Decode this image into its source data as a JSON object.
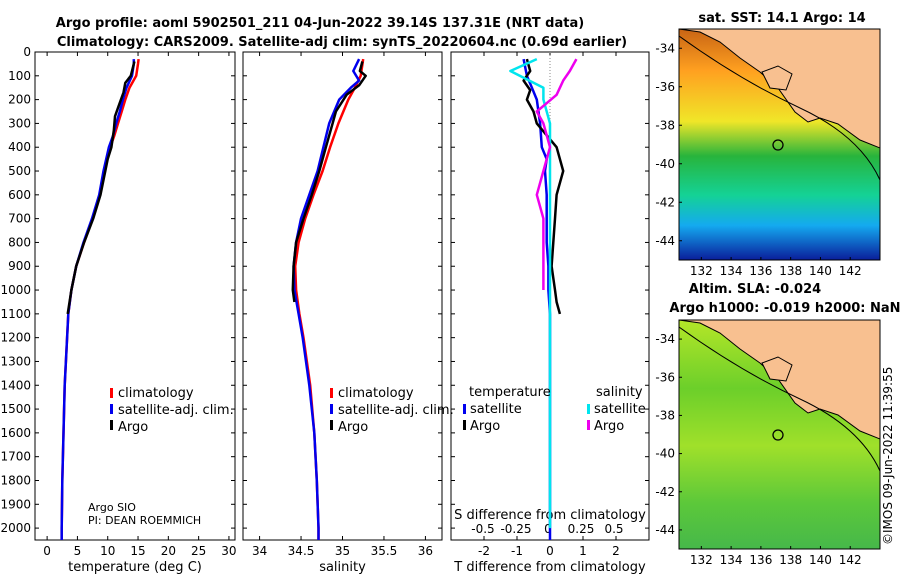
{
  "title": {
    "line1": "Argo profile: aoml 5902501_211 04-Jun-2022 39.14S 137.31E (NRT data)",
    "line2": "Climatology: CARS2009. Satellite-adj clim: synTS_20220604.nc (0.69d earlier)"
  },
  "colors": {
    "climatology": "#ff0000",
    "satellite": "#0000ee",
    "argo": "#000000",
    "sat_salinity": "#00e5ee",
    "argo_salinity": "#ee00ee"
  },
  "credits": {
    "line1": "Argo SIO",
    "line2": "PI: DEAN ROEMMICH"
  },
  "timestamp": "©IMOS 09-Jun-2022 11:39:55",
  "legend": {
    "climatology": "climatology",
    "satellite": "satellite-adj. clim.",
    "argo": "Argo",
    "temperature": "temperature",
    "salinity": "salinity",
    "sat_short": "satellite"
  },
  "chart_data": [
    {
      "type": "line",
      "id": "temperature",
      "xlabel": "temperature (deg C)",
      "ylabel": "",
      "xlim": [
        -2,
        31
      ],
      "ylim": [
        0,
        2050
      ],
      "xticks": [
        0,
        5,
        10,
        15,
        20,
        25,
        30
      ],
      "yticks": [
        0,
        100,
        200,
        300,
        400,
        500,
        600,
        700,
        800,
        900,
        1000,
        1100,
        1200,
        1300,
        1400,
        1500,
        1600,
        1700,
        1800,
        1900,
        2000
      ],
      "series": [
        {
          "name": "climatology",
          "depth": [
            30,
            50,
            100,
            150,
            200,
            250,
            300,
            350,
            400,
            500,
            600,
            700,
            800,
            900,
            1000,
            1100,
            1200,
            1400,
            1600,
            1800,
            2000,
            2050
          ],
          "values": [
            15.1,
            15.0,
            14.7,
            13.6,
            12.9,
            12.3,
            11.7,
            11.1,
            10.4,
            9.4,
            8.7,
            7.5,
            6.1,
            4.8,
            4.0,
            3.5,
            3.3,
            2.9,
            2.7,
            2.5,
            2.4,
            2.4
          ]
        },
        {
          "name": "satellite-adj. clim.",
          "depth": [
            30,
            50,
            100,
            150,
            200,
            250,
            300,
            350,
            400,
            500,
            600,
            700,
            800,
            900,
            1000,
            1100,
            1200,
            1400,
            1600,
            1800,
            2000,
            2050
          ],
          "values": [
            14.3,
            14.3,
            14.0,
            13.1,
            12.5,
            12.0,
            11.4,
            10.9,
            10.2,
            9.3,
            8.6,
            7.4,
            6.0,
            4.8,
            4.0,
            3.5,
            3.3,
            2.9,
            2.7,
            2.5,
            2.4,
            2.4
          ]
        },
        {
          "name": "Argo",
          "depth": [
            40,
            60,
            100,
            130,
            170,
            220,
            270,
            330,
            400,
            450,
            500,
            600,
            700,
            800,
            900,
            1000,
            1100
          ],
          "values": [
            14.4,
            14.2,
            13.8,
            12.9,
            12.6,
            11.9,
            11.2,
            11.0,
            10.6,
            10.0,
            9.6,
            8.8,
            7.6,
            6.1,
            4.8,
            4.0,
            3.4
          ]
        }
      ]
    },
    {
      "type": "line",
      "id": "salinity",
      "xlabel": "salinity",
      "ylabel": "",
      "xlim": [
        33.8,
        36.2
      ],
      "ylim": [
        0,
        2050
      ],
      "xticks": [
        34,
        34.5,
        35,
        35.5,
        36
      ],
      "series": [
        {
          "name": "climatology",
          "depth": [
            30,
            100,
            150,
            200,
            300,
            400,
            500,
            600,
            700,
            800,
            900,
            1000,
            1100,
            1200,
            1400,
            1600,
            1800,
            2000,
            2050
          ],
          "values": [
            35.25,
            35.22,
            35.15,
            35.07,
            34.95,
            34.85,
            34.76,
            34.65,
            34.55,
            34.47,
            34.43,
            34.44,
            34.48,
            34.53,
            34.61,
            34.66,
            34.69,
            34.71,
            34.71
          ]
        },
        {
          "name": "satellite-adj. clim.",
          "depth": [
            30,
            80,
            120,
            150,
            200,
            300,
            400,
            500,
            600,
            700,
            800,
            900,
            1000,
            1100,
            1200,
            1400,
            1600,
            1800,
            2000,
            2050
          ],
          "values": [
            35.2,
            35.13,
            35.2,
            35.1,
            34.96,
            34.84,
            34.77,
            34.7,
            34.6,
            34.5,
            34.44,
            34.41,
            34.42,
            34.47,
            34.52,
            34.6,
            34.66,
            34.69,
            34.71,
            34.71
          ]
        },
        {
          "name": "Argo",
          "depth": [
            40,
            80,
            100,
            140,
            180,
            250,
            300,
            400,
            500,
            600,
            700,
            800,
            900,
            1000,
            1050
          ],
          "values": [
            35.24,
            35.21,
            35.28,
            35.2,
            35.05,
            34.92,
            34.88,
            34.8,
            34.72,
            34.63,
            34.53,
            34.44,
            34.41,
            34.4,
            34.42
          ]
        }
      ]
    },
    {
      "type": "line",
      "id": "difference",
      "xlabel": "T difference from climatology",
      "xlabel_top": "S difference from climatology",
      "xlim": [
        -3,
        3
      ],
      "ylim": [
        0,
        2050
      ],
      "xticks": [
        -2,
        -1,
        0,
        1,
        2
      ],
      "top_ticks": [
        "-0.5",
        "-0.25",
        "0",
        "0.25",
        "0.5"
      ],
      "series": [
        {
          "name": "temperature satellite",
          "depth": [
            30,
            100,
            150,
            200,
            300,
            400,
            450,
            500,
            600,
            700,
            800,
            900,
            1000,
            1100,
            1200,
            1400,
            1600,
            1800,
            2000,
            2050
          ],
          "values": [
            -0.8,
            -0.7,
            -0.55,
            -0.4,
            -0.3,
            -0.25,
            -0.1,
            -0.15,
            -0.1,
            -0.1,
            -0.1,
            -0.05,
            -0.05,
            0,
            0,
            0,
            0,
            0,
            0,
            0
          ]
        },
        {
          "name": "temperature Argo",
          "depth": [
            30,
            80,
            120,
            160,
            200,
            250,
            300,
            350,
            400,
            450,
            500,
            600,
            700,
            800,
            900,
            1000,
            1050,
            1100
          ],
          "values": [
            -0.7,
            -0.6,
            -0.8,
            -0.6,
            -0.7,
            -0.5,
            -0.4,
            -0.1,
            0.2,
            0.3,
            0.4,
            0.2,
            0.15,
            0.1,
            0.05,
            0.15,
            0.2,
            0.3
          ]
        },
        {
          "name": "salinity satellite",
          "depth": [
            30,
            80,
            150,
            200,
            300,
            400,
            500,
            600,
            700,
            800,
            900,
            1000,
            1100,
            1200,
            1400,
            1600,
            2000
          ],
          "values": [
            -0.1,
            -0.3,
            -0.05,
            -0.05,
            0,
            0,
            0,
            0,
            0,
            0,
            0,
            0,
            0,
            0,
            0,
            0,
            0
          ]
        },
        {
          "name": "salinity Argo",
          "depth": [
            30,
            80,
            120,
            180,
            250,
            300,
            400,
            500,
            600,
            700,
            800,
            900,
            1000
          ],
          "values": [
            0.2,
            0.15,
            0.1,
            0.05,
            -0.1,
            -0.05,
            0.0,
            -0.05,
            -0.1,
            -0.05,
            -0.05,
            -0.05,
            -0.05
          ]
        }
      ]
    },
    {
      "type": "heatmap",
      "id": "sst_map",
      "title": "sat. SST: 14.1 Argo: 14",
      "xticks": [
        132,
        134,
        136,
        138,
        140,
        142
      ],
      "yticks": [
        -34,
        -36,
        -38,
        -40,
        -42,
        -44
      ],
      "xlim": [
        130.5,
        144
      ],
      "ylim": [
        -45,
        -33
      ],
      "marker": {
        "lon": 137.31,
        "lat": -39.14
      }
    },
    {
      "type": "heatmap",
      "id": "sla_map",
      "title": "Altim. SLA: -0.024",
      "subtitle": "Argo h1000: -0.019 h2000: NaN",
      "xticks": [
        132,
        134,
        136,
        138,
        140,
        142
      ],
      "yticks": [
        -34,
        -36,
        -38,
        -40,
        -42,
        -44
      ],
      "xlim": [
        130.5,
        144
      ],
      "ylim": [
        -45,
        -33
      ],
      "marker": {
        "lon": 137.31,
        "lat": -39.14
      }
    }
  ]
}
